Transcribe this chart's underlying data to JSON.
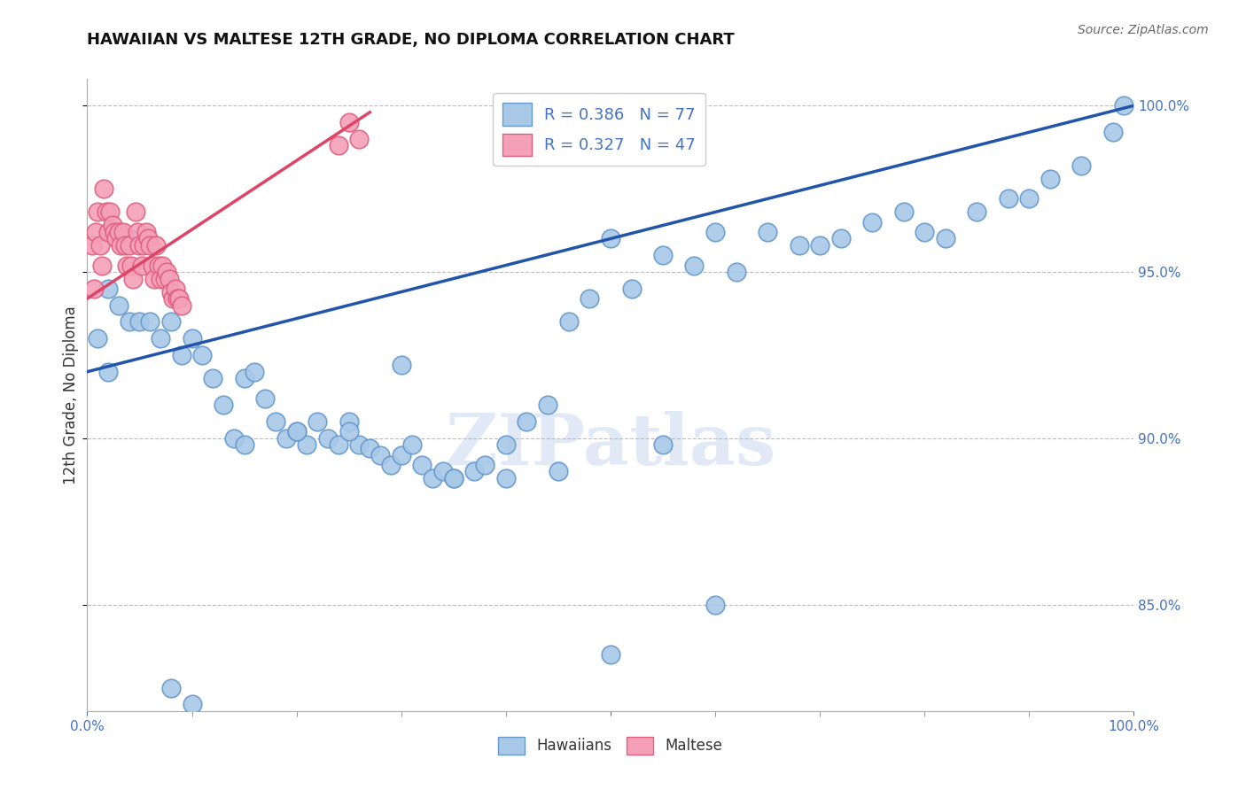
{
  "title": "HAWAIIAN VS MALTESE 12TH GRADE, NO DIPLOMA CORRELATION CHART",
  "source": "Source: ZipAtlas.com",
  "ylabel": "12th Grade, No Diploma",
  "ylabel_values": [
    1.0,
    0.95,
    0.9,
    0.85
  ],
  "xmin": 0.0,
  "xmax": 1.0,
  "ymin": 0.818,
  "ymax": 1.008,
  "hawaiian_color": "#a8c8e8",
  "maltese_color": "#f4a0b8",
  "hawaiian_edge": "#6699cc",
  "maltese_edge": "#e06080",
  "trend_blue": "#2255aa",
  "trend_pink": "#dd4466",
  "R_hawaiian": 0.386,
  "N_hawaiian": 77,
  "R_maltese": 0.327,
  "N_maltese": 47,
  "watermark": "ZIPatlas",
  "background_color": "#ffffff",
  "hawaiian_x": [
    0.01,
    0.02,
    0.02,
    0.03,
    0.04,
    0.04,
    0.05,
    0.06,
    0.07,
    0.08,
    0.09,
    0.1,
    0.11,
    0.12,
    0.13,
    0.14,
    0.15,
    0.16,
    0.17,
    0.18,
    0.19,
    0.2,
    0.21,
    0.22,
    0.23,
    0.24,
    0.25,
    0.26,
    0.27,
    0.28,
    0.29,
    0.3,
    0.31,
    0.32,
    0.33,
    0.34,
    0.35,
    0.37,
    0.38,
    0.4,
    0.42,
    0.44,
    0.46,
    0.48,
    0.5,
    0.52,
    0.55,
    0.58,
    0.6,
    0.62,
    0.65,
    0.68,
    0.7,
    0.72,
    0.75,
    0.78,
    0.8,
    0.82,
    0.85,
    0.88,
    0.9,
    0.92,
    0.95,
    0.98,
    0.99,
    0.08,
    0.1,
    0.5,
    0.6,
    0.15,
    0.2,
    0.25,
    0.3,
    0.35,
    0.4,
    0.45,
    0.55
  ],
  "hawaiian_y": [
    0.93,
    0.92,
    0.945,
    0.94,
    0.935,
    0.96,
    0.935,
    0.935,
    0.93,
    0.935,
    0.925,
    0.93,
    0.925,
    0.918,
    0.91,
    0.9,
    0.918,
    0.92,
    0.912,
    0.905,
    0.9,
    0.902,
    0.898,
    0.905,
    0.9,
    0.898,
    0.905,
    0.898,
    0.897,
    0.895,
    0.892,
    0.895,
    0.898,
    0.892,
    0.888,
    0.89,
    0.888,
    0.89,
    0.892,
    0.898,
    0.905,
    0.91,
    0.935,
    0.942,
    0.96,
    0.945,
    0.955,
    0.952,
    0.962,
    0.95,
    0.962,
    0.958,
    0.958,
    0.96,
    0.965,
    0.968,
    0.962,
    0.96,
    0.968,
    0.972,
    0.972,
    0.978,
    0.982,
    0.992,
    1.0,
    0.825,
    0.82,
    0.835,
    0.85,
    0.898,
    0.902,
    0.902,
    0.922,
    0.888,
    0.888,
    0.89,
    0.898
  ],
  "maltese_x": [
    0.005,
    0.008,
    0.01,
    0.012,
    0.014,
    0.016,
    0.018,
    0.02,
    0.022,
    0.024,
    0.026,
    0.028,
    0.03,
    0.032,
    0.034,
    0.036,
    0.038,
    0.04,
    0.042,
    0.044,
    0.046,
    0.048,
    0.05,
    0.052,
    0.054,
    0.056,
    0.058,
    0.06,
    0.062,
    0.064,
    0.066,
    0.068,
    0.07,
    0.072,
    0.074,
    0.076,
    0.078,
    0.08,
    0.082,
    0.084,
    0.086,
    0.088,
    0.09,
    0.24,
    0.25,
    0.26,
    0.006
  ],
  "maltese_y": [
    0.958,
    0.962,
    0.968,
    0.958,
    0.952,
    0.975,
    0.968,
    0.962,
    0.968,
    0.964,
    0.962,
    0.96,
    0.962,
    0.958,
    0.962,
    0.958,
    0.952,
    0.958,
    0.952,
    0.948,
    0.968,
    0.962,
    0.958,
    0.952,
    0.958,
    0.962,
    0.96,
    0.958,
    0.952,
    0.948,
    0.958,
    0.952,
    0.948,
    0.952,
    0.948,
    0.95,
    0.948,
    0.944,
    0.942,
    0.945,
    0.942,
    0.942,
    0.94,
    0.988,
    0.995,
    0.99,
    0.945
  ],
  "hawaiian_trend_x": [
    0.0,
    1.0
  ],
  "hawaiian_trend_y": [
    0.92,
    1.0
  ],
  "maltese_trend_x": [
    0.0,
    0.27
  ],
  "maltese_trend_y": [
    0.942,
    0.998
  ]
}
